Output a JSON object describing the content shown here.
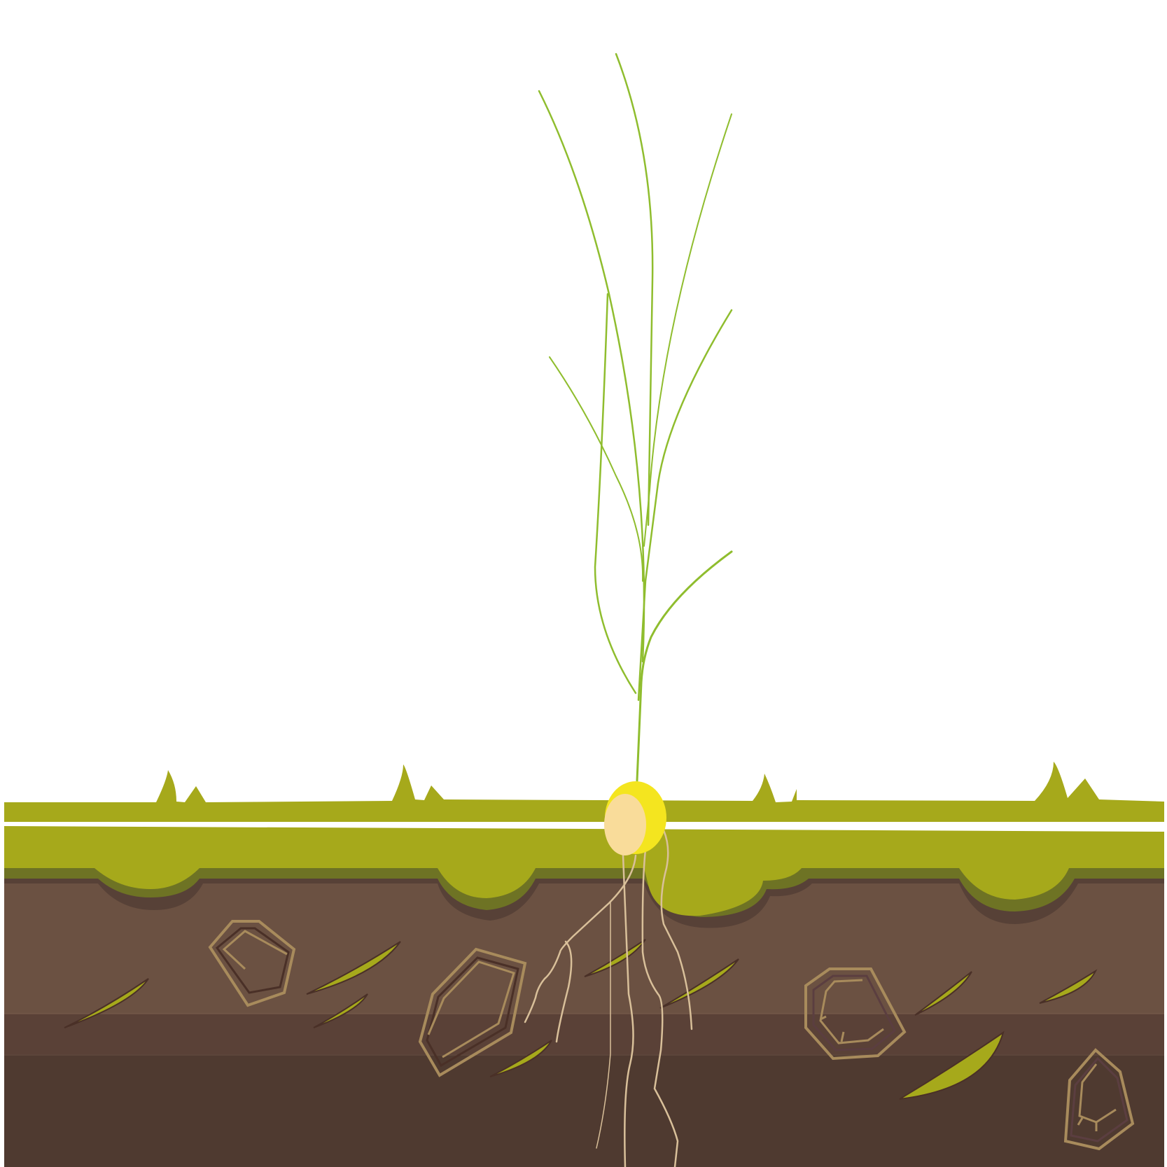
{
  "scene": {
    "subject": "seedling",
    "colors": {
      "sky": "#ffffff",
      "grass": "#a6a91b",
      "grass_shadow": "#6e7324",
      "soil_top": "#6b5142",
      "soil_shadow": "#574137",
      "soil_mid": "#5a4137",
      "soil_deep": "#4f3a30",
      "leaf": "#8fbd2e",
      "stem": "#7fb02a",
      "seed_outer": "#f4e51f",
      "seed_inner": "#f9dc9a",
      "root": "#d9c09a",
      "stone_outline": "#a88b5c",
      "stone_dark": "#4a3027",
      "soil_leaf": "#a6a91b"
    }
  }
}
